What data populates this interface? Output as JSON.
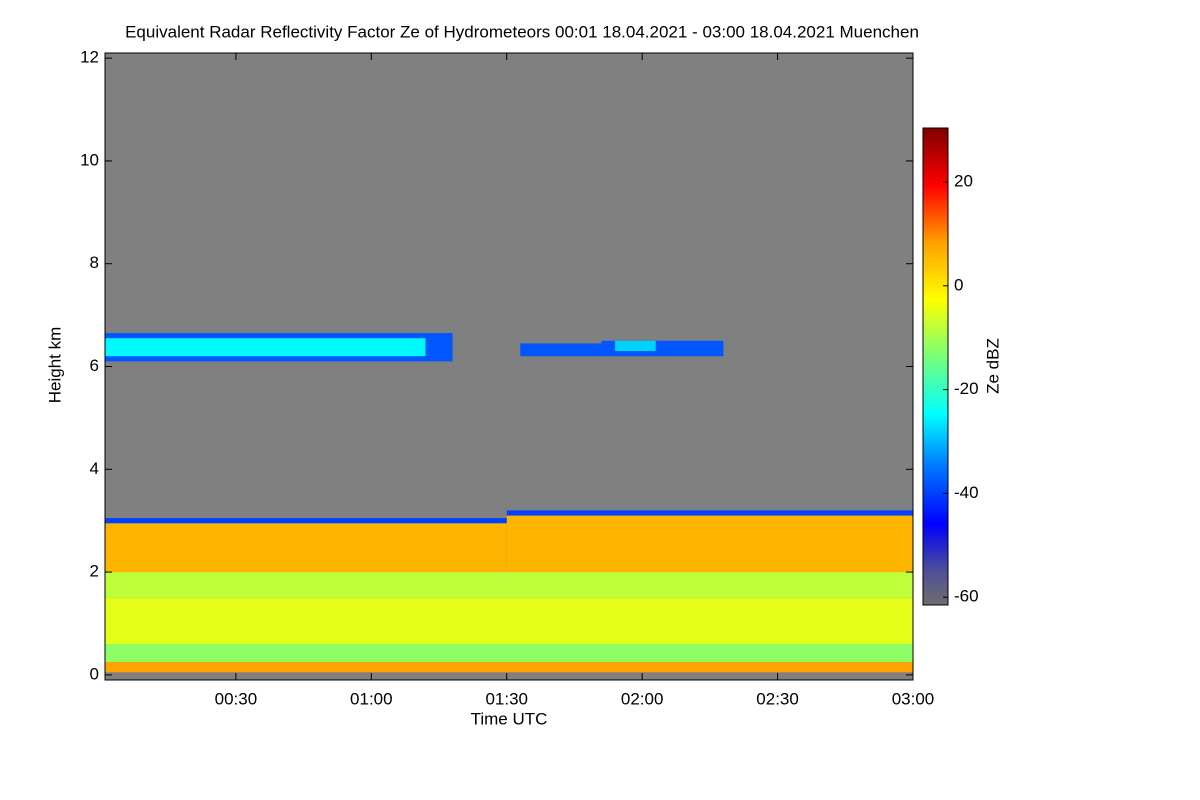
{
  "chart_data": {
    "type": "heatmap",
    "title": "Equivalent Radar Reflectivity Factor Ze of Hydrometeors   00:01 18.04.2021 - 03:00 18.04.2021 Muenchen",
    "x_label": "Time UTC",
    "y_label": "Height km",
    "colorbar_label": "Ze dBZ",
    "xlim": [
      0.0167,
      3
    ],
    "xticks": [
      {
        "value": 0.5,
        "label": "00:30"
      },
      {
        "value": 1,
        "label": "01:00"
      },
      {
        "value": 1.5,
        "label": "01:30"
      },
      {
        "value": 2,
        "label": "02:00"
      },
      {
        "value": 2.5,
        "label": "02:30"
      },
      {
        "value": 3,
        "label": "03:00"
      }
    ],
    "ylim": [
      -0.1,
      12.1
    ],
    "yticks": [
      0,
      2,
      4,
      6,
      8,
      10,
      12
    ],
    "clim": [
      -61.5,
      30.4
    ],
    "cticks": [
      -60,
      -40,
      -20,
      0,
      20
    ],
    "cells": [
      {
        "x": [
          0.0167,
          3
        ],
        "y": [
          0.05,
          0.25
        ],
        "value": 8
      },
      {
        "x": [
          0.0167,
          3
        ],
        "y": [
          0.25,
          0.6
        ],
        "value": -12
      },
      {
        "x": [
          0.0167,
          3
        ],
        "y": [
          0.6,
          1.5
        ],
        "value": -5
      },
      {
        "x": [
          0.0167,
          3
        ],
        "y": [
          1.5,
          2.0
        ],
        "value": -8
      },
      {
        "x": [
          0.0167,
          1.5
        ],
        "y": [
          2.0,
          2.95
        ],
        "value": 6
      },
      {
        "x": [
          1.5,
          3
        ],
        "y": [
          2.0,
          3.1
        ],
        "value": 6
      },
      {
        "x": [
          0.0167,
          1.5
        ],
        "y": [
          2.95,
          3.05
        ],
        "value": -40
      },
      {
        "x": [
          1.5,
          3
        ],
        "y": [
          3.1,
          3.2
        ],
        "value": -40
      },
      {
        "x": [
          0.0167,
          1.3
        ],
        "y": [
          6.1,
          6.65
        ],
        "value": -38
      },
      {
        "x": [
          0.0167,
          1.2
        ],
        "y": [
          6.2,
          6.55
        ],
        "value": -25
      },
      {
        "x": [
          1.55,
          1.85
        ],
        "y": [
          6.2,
          6.45
        ],
        "value": -38
      },
      {
        "x": [
          1.85,
          2.3
        ],
        "y": [
          6.2,
          6.5
        ],
        "value": -38
      },
      {
        "x": [
          1.9,
          2.05
        ],
        "y": [
          6.3,
          6.5
        ],
        "value": -28
      }
    ]
  }
}
